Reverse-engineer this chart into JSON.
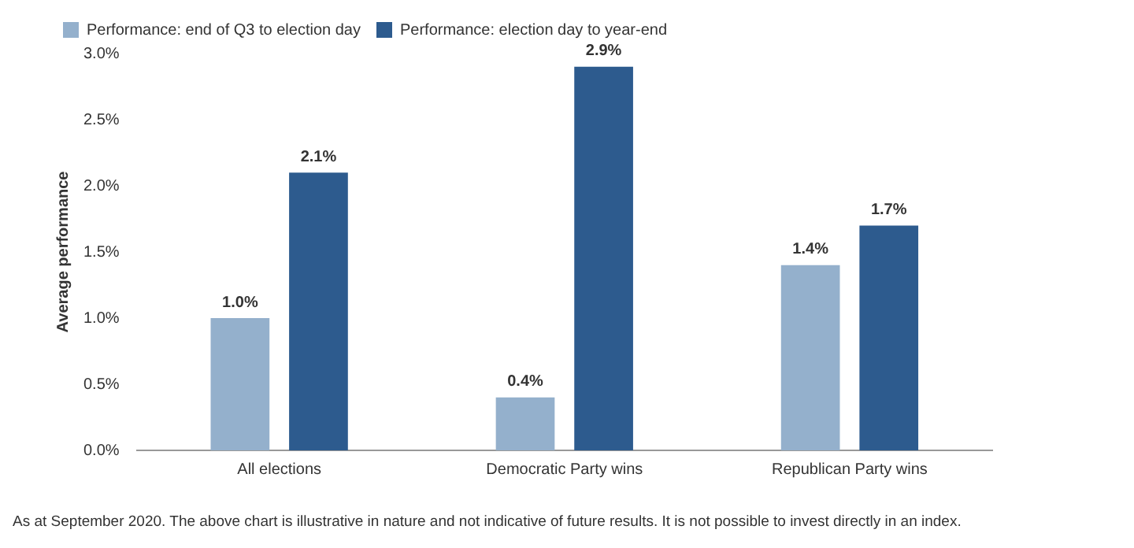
{
  "chart_data": {
    "type": "bar",
    "ylabel": "Average performance",
    "categories": [
      "All elections",
      "Democratic Party wins",
      "Republican Party wins"
    ],
    "series": [
      {
        "name": "Performance: end of Q3 to election day",
        "color": "#94b0cc",
        "values": [
          1.0,
          0.4,
          1.4
        ],
        "value_labels": [
          "1.0%",
          "0.4%",
          "1.4%"
        ]
      },
      {
        "name": "Performance: election day to year-end",
        "color": "#2d5b8e",
        "values": [
          2.1,
          2.9,
          1.7
        ],
        "value_labels": [
          "2.1%",
          "2.9%",
          "1.7%"
        ]
      }
    ],
    "ylim": [
      0,
      3
    ],
    "yticks": [
      {
        "value": 0,
        "label": "0.0%"
      },
      {
        "value": 0.5,
        "label": "0.5%"
      },
      {
        "value": 1,
        "label": "1.0%"
      },
      {
        "value": 1.5,
        "label": "1.5%"
      },
      {
        "value": 2,
        "label": "2.0%"
      },
      {
        "value": 2.5,
        "label": "2.5%"
      },
      {
        "value": 3,
        "label": "3.0%"
      }
    ],
    "grid": false,
    "legend": "top left",
    "annotations": [
      "As at September 2020. The above chart is illustrative in nature and not indicative of future results. It is not possible to invest directly in an index."
    ]
  }
}
